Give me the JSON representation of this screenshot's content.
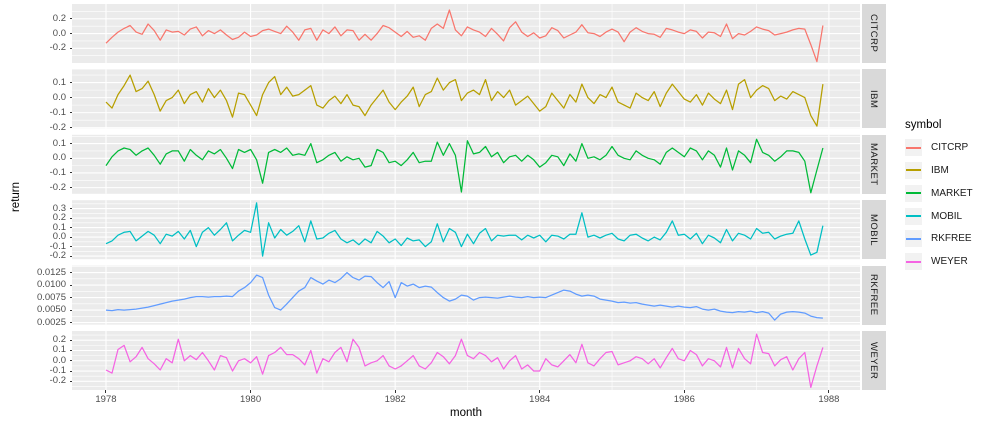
{
  "colors": {
    "panel_bg": "#EBEBEB",
    "strip_bg": "#D9D9D9",
    "grid": "#FFFFFF",
    "tick_mark": "#333333",
    "axis_text": "#4D4D4D",
    "title_text": "#000000",
    "legend_key_bg": "#F2F2F2"
  },
  "chart_data": {
    "type": "line",
    "title": "",
    "xlabel": "month",
    "ylabel": "return",
    "legend_title": "symbol",
    "legend_position": "right",
    "facet_strip_position": "right",
    "grid": true,
    "x_start": 1978,
    "x_step": 0.083333,
    "xlim": [
      1977.53,
      1988.43
    ],
    "x_ticks": {
      "values": [
        1978,
        1980,
        1982,
        1984,
        1986,
        1988
      ],
      "labels": [
        "1978",
        "1980",
        "1982",
        "1984",
        "1986",
        "1988"
      ]
    },
    "x_minor_ticks": [
      1979,
      1981,
      1983,
      1985,
      1987
    ],
    "series": [
      {
        "name": "CITCRP",
        "color": "#F8766D",
        "ylim": [
          -0.399,
          0.401
        ],
        "y_ticks": {
          "values": [
            0.2,
            0.0,
            -0.2
          ],
          "labels": [
            "0.2",
            "0.0",
            "-0.2"
          ]
        },
        "y_minor_ticks": [
          0.3,
          0.1,
          -0.1,
          -0.3
        ],
        "values": [
          -0.13,
          -0.05,
          0.02,
          0.07,
          0.11,
          0.02,
          -0.01,
          0.13,
          0.04,
          -0.09,
          0.05,
          0.02,
          0.03,
          -0.02,
          0.06,
          0.09,
          -0.03,
          0.04,
          0.0,
          0.05,
          -0.02,
          -0.08,
          -0.05,
          0.02,
          -0.04,
          -0.02,
          0.04,
          0.06,
          0.03,
          0.0,
          0.1,
          0.02,
          -0.09,
          0.05,
          0.07,
          -0.09,
          0.05,
          0.0,
          0.09,
          -0.03,
          0.05,
          0.04,
          -0.09,
          -0.01,
          -0.09,
          0.0,
          0.11,
          0.08,
          0.02,
          -0.04,
          0.03,
          -0.05,
          -0.03,
          -0.09,
          0.07,
          0.13,
          0.07,
          0.32,
          0.05,
          -0.03,
          0.09,
          0.05,
          0.02,
          -0.04,
          0.07,
          -0.01,
          -0.1,
          0.08,
          0.16,
          0.02,
          -0.04,
          0.01,
          -0.06,
          -0.03,
          0.08,
          0.04,
          -0.06,
          -0.02,
          0.02,
          0.12,
          0.01,
          0.0,
          -0.04,
          0.02,
          0.06,
          0.02,
          -0.11,
          0.02,
          0.08,
          0.03,
          0.0,
          -0.01,
          -0.05,
          0.07,
          0.05,
          0.02,
          0.0,
          0.05,
          0.03,
          -0.06,
          0.02,
          0.01,
          -0.04,
          0.13,
          -0.07,
          0.0,
          -0.02,
          0.03,
          0.09,
          0.06,
          0.04,
          -0.02,
          0.0,
          0.02,
          0.05,
          0.07,
          0.06,
          -0.15,
          -0.38,
          0.11
        ]
      },
      {
        "name": "IBM",
        "color": "#B79F00",
        "ylim": [
          -0.205,
          0.188
        ],
        "y_ticks": {
          "values": [
            0.1,
            0.0,
            -0.1,
            -0.2
          ],
          "labels": [
            "0.1",
            "0.0",
            "-0.1",
            "-0.2"
          ]
        },
        "y_minor_ticks": [
          0.15,
          0.05,
          -0.05,
          -0.15
        ],
        "values": [
          -0.03,
          -0.07,
          0.02,
          0.08,
          0.15,
          0.04,
          0.06,
          0.11,
          0.02,
          -0.09,
          -0.02,
          0.0,
          0.05,
          -0.04,
          0.02,
          0.04,
          -0.03,
          0.06,
          0.0,
          0.05,
          -0.02,
          -0.13,
          0.03,
          0.02,
          -0.05,
          -0.12,
          0.02,
          0.1,
          0.14,
          0.02,
          0.07,
          0.01,
          0.02,
          0.05,
          0.08,
          -0.05,
          -0.07,
          -0.02,
          0.01,
          -0.04,
          0.02,
          -0.05,
          -0.06,
          -0.12,
          -0.05,
          0.0,
          0.05,
          -0.03,
          -0.08,
          -0.03,
          0.01,
          0.07,
          -0.06,
          0.02,
          0.04,
          0.13,
          0.05,
          0.1,
          0.12,
          -0.02,
          0.03,
          0.05,
          0.02,
          0.12,
          -0.02,
          0.04,
          0.0,
          0.05,
          -0.05,
          -0.02,
          0.01,
          -0.04,
          -0.09,
          -0.06,
          0.03,
          -0.02,
          -0.07,
          0.02,
          -0.03,
          0.09,
          0.0,
          -0.04,
          0.02,
          0.0,
          0.07,
          -0.03,
          -0.05,
          -0.07,
          0.03,
          0.0,
          -0.02,
          0.04,
          -0.06,
          0.03,
          0.09,
          0.04,
          -0.01,
          -0.03,
          0.02,
          -0.05,
          0.03,
          -0.01,
          -0.04,
          0.05,
          -0.08,
          0.09,
          0.12,
          0.0,
          0.05,
          0.08,
          0.06,
          -0.02,
          0.01,
          -0.01,
          0.04,
          0.02,
          0.0,
          -0.12,
          -0.19,
          0.09
        ]
      },
      {
        "name": "MARKET",
        "color": "#00BA38",
        "ylim": [
          -0.242,
          0.16
        ],
        "y_ticks": {
          "values": [
            0.1,
            0.0,
            -0.1,
            -0.2
          ],
          "labels": [
            "0.1",
            "0.0",
            "-0.1",
            "-0.2"
          ]
        },
        "y_minor_ticks": [
          0.15,
          0.05,
          -0.05,
          -0.15
        ],
        "values": [
          -0.05,
          0.01,
          0.05,
          0.07,
          0.06,
          0.02,
          0.05,
          0.07,
          0.02,
          -0.04,
          0.03,
          0.05,
          0.05,
          -0.02,
          0.06,
          0.02,
          -0.01,
          0.05,
          0.03,
          0.06,
          0.0,
          -0.07,
          0.06,
          0.04,
          0.06,
          -0.01,
          -0.17,
          0.04,
          0.06,
          0.04,
          0.07,
          0.02,
          0.03,
          0.02,
          0.1,
          -0.03,
          -0.01,
          0.02,
          0.04,
          -0.02,
          0.01,
          -0.01,
          0.0,
          -0.06,
          -0.05,
          0.06,
          0.04,
          -0.03,
          -0.02,
          -0.05,
          -0.01,
          0.04,
          -0.03,
          -0.02,
          -0.02,
          0.11,
          0.02,
          0.1,
          0.02,
          -0.23,
          0.12,
          0.03,
          0.04,
          0.08,
          0.01,
          0.04,
          -0.03,
          0.01,
          0.02,
          -0.02,
          0.02,
          -0.01,
          -0.06,
          -0.03,
          0.02,
          0.01,
          -0.05,
          0.03,
          -0.02,
          0.1,
          0.0,
          0.01,
          -0.01,
          0.02,
          0.08,
          0.02,
          0.0,
          -0.01,
          0.05,
          0.02,
          0.0,
          -0.01,
          -0.04,
          0.04,
          0.07,
          0.04,
          0.01,
          0.07,
          0.05,
          -0.01,
          0.05,
          0.02,
          -0.06,
          0.07,
          -0.08,
          0.05,
          0.02,
          -0.03,
          0.13,
          0.04,
          0.02,
          -0.02,
          0.01,
          0.05,
          0.05,
          0.04,
          -0.02,
          -0.235,
          -0.08,
          0.07
        ]
      },
      {
        "name": "MOBIL",
        "color": "#00BFC4",
        "ylim": [
          -0.233,
          0.388
        ],
        "y_ticks": {
          "values": [
            0.3,
            0.2,
            0.1,
            0.0,
            -0.1,
            -0.2
          ],
          "labels": [
            "0.3",
            "0.2",
            "0.1",
            "0.0",
            "-0.1",
            "-0.2"
          ]
        },
        "y_minor_ticks": [
          0.35,
          0.25,
          0.15,
          0.05,
          -0.05,
          -0.15
        ],
        "values": [
          -0.07,
          -0.04,
          0.02,
          0.05,
          0.06,
          -0.04,
          0.01,
          0.06,
          0.02,
          -0.07,
          0.03,
          0.01,
          0.06,
          -0.02,
          0.07,
          -0.1,
          0.05,
          0.1,
          0.02,
          0.08,
          0.15,
          -0.04,
          0.02,
          0.07,
          0.05,
          0.36,
          -0.2,
          0.15,
          -0.01,
          0.08,
          0.02,
          0.06,
          0.12,
          -0.05,
          0.17,
          -0.02,
          -0.01,
          0.04,
          0.07,
          -0.02,
          -0.06,
          -0.03,
          -0.08,
          -0.02,
          -0.06,
          0.06,
          0.01,
          -0.06,
          -0.02,
          -0.09,
          -0.01,
          -0.04,
          -0.03,
          -0.1,
          -0.05,
          0.14,
          -0.05,
          0.09,
          0.05,
          -0.1,
          0.03,
          -0.07,
          0.04,
          0.09,
          -0.04,
          0.02,
          0.01,
          0.02,
          0.02,
          -0.03,
          0.02,
          -0.01,
          0.02,
          -0.05,
          0.02,
          0.01,
          -0.02,
          0.03,
          0.03,
          0.255,
          0.0,
          0.02,
          -0.01,
          0.02,
          0.04,
          -0.02,
          -0.04,
          0.02,
          0.03,
          -0.01,
          -0.04,
          0.0,
          -0.03,
          0.05,
          0.17,
          0.02,
          0.03,
          -0.02,
          0.04,
          -0.07,
          0.02,
          -0.01,
          -0.06,
          0.08,
          -0.04,
          0.04,
          0.02,
          -0.02,
          0.09,
          0.04,
          0.05,
          -0.02,
          0.01,
          0.03,
          0.04,
          0.17,
          -0.02,
          -0.19,
          -0.16,
          0.12
        ]
      },
      {
        "name": "RKFREE",
        "color": "#619CFF",
        "ylim": [
          0.0021,
          0.0139
        ],
        "y_ticks": {
          "values": [
            0.0125,
            0.01,
            0.0075,
            0.005,
            0.0025
          ],
          "labels": [
            "0.0125",
            "0.0100",
            "0.0075",
            "0.0050",
            "0.0025"
          ]
        },
        "y_minor_ticks": [
          0.01375,
          0.01125,
          0.00875,
          0.00625,
          0.00375
        ],
        "values": [
          0.005,
          0.0049,
          0.0051,
          0.005,
          0.0051,
          0.0052,
          0.0054,
          0.0056,
          0.0059,
          0.0062,
          0.0065,
          0.0068,
          0.007,
          0.0072,
          0.0075,
          0.0077,
          0.0077,
          0.0076,
          0.0077,
          0.0077,
          0.0078,
          0.0077,
          0.0088,
          0.0095,
          0.0105,
          0.012,
          0.0115,
          0.008,
          0.0055,
          0.005,
          0.0062,
          0.0075,
          0.0088,
          0.0095,
          0.0115,
          0.0108,
          0.0102,
          0.011,
          0.0105,
          0.0113,
          0.0125,
          0.0115,
          0.011,
          0.0118,
          0.0117,
          0.0105,
          0.0095,
          0.0107,
          0.0075,
          0.0105,
          0.0098,
          0.0102,
          0.0095,
          0.0098,
          0.0096,
          0.0085,
          0.0075,
          0.0068,
          0.0072,
          0.008,
          0.0078,
          0.007,
          0.0075,
          0.0076,
          0.0075,
          0.0074,
          0.0076,
          0.0078,
          0.0076,
          0.0075,
          0.0077,
          0.0075,
          0.0076,
          0.0075,
          0.008,
          0.0085,
          0.009,
          0.0088,
          0.0082,
          0.0078,
          0.008,
          0.0078,
          0.0072,
          0.007,
          0.0068,
          0.0065,
          0.0066,
          0.0064,
          0.0065,
          0.0062,
          0.006,
          0.0058,
          0.006,
          0.0058,
          0.0056,
          0.0058,
          0.0056,
          0.0055,
          0.0057,
          0.0052,
          0.005,
          0.0052,
          0.0048,
          0.0046,
          0.0045,
          0.0047,
          0.0046,
          0.0048,
          0.0045,
          0.0047,
          0.0044,
          0.003,
          0.0042,
          0.0046,
          0.0047,
          0.0046,
          0.0044,
          0.0038,
          0.0035,
          0.0034
        ]
      },
      {
        "name": "WEYER",
        "color": "#F564E3",
        "ylim": [
          -0.285,
          0.29
        ],
        "y_ticks": {
          "values": [
            0.2,
            0.1,
            0.0,
            -0.1,
            -0.2
          ],
          "labels": [
            "0.2",
            "0.1",
            "0.0",
            "-0.1",
            "-0.2"
          ]
        },
        "y_minor_ticks": [
          0.25,
          0.15,
          0.05,
          -0.05,
          -0.15,
          -0.25
        ],
        "values": [
          -0.09,
          -0.12,
          0.11,
          0.15,
          -0.01,
          0.04,
          0.13,
          0.02,
          -0.03,
          -0.09,
          0.02,
          -0.02,
          0.21,
          0.0,
          0.05,
          0.01,
          0.08,
          0.0,
          -0.09,
          0.05,
          0.03,
          -0.1,
          0.0,
          0.02,
          -0.02,
          0.04,
          -0.13,
          0.05,
          0.08,
          0.13,
          0.06,
          0.06,
          0.02,
          -0.04,
          0.1,
          -0.12,
          0.02,
          -0.01,
          0.08,
          0.13,
          -0.01,
          0.21,
          0.13,
          -0.05,
          -0.02,
          0.0,
          0.05,
          -0.05,
          -0.08,
          -0.05,
          0.0,
          0.05,
          -0.05,
          -0.08,
          -0.02,
          0.08,
          0.04,
          -0.03,
          0.05,
          0.21,
          0.05,
          0.02,
          0.08,
          0.05,
          -0.01,
          0.03,
          -0.08,
          0.0,
          0.05,
          -0.08,
          -0.04,
          -0.1,
          -0.1,
          0.02,
          -0.04,
          -0.06,
          0.0,
          0.06,
          -0.02,
          0.16,
          -0.02,
          -0.05,
          0.02,
          0.08,
          0.09,
          -0.04,
          -0.02,
          0.0,
          0.04,
          0.02,
          -0.03,
          0.02,
          -0.07,
          0.03,
          0.12,
          0.02,
          0.0,
          0.1,
          0.06,
          -0.05,
          0.02,
          0.0,
          -0.06,
          0.13,
          -0.07,
          0.12,
          0.02,
          -0.03,
          0.26,
          0.08,
          0.07,
          -0.05,
          0.01,
          0.04,
          -0.09,
          0.02,
          0.08,
          -0.26,
          -0.05,
          0.13
        ]
      }
    ]
  }
}
